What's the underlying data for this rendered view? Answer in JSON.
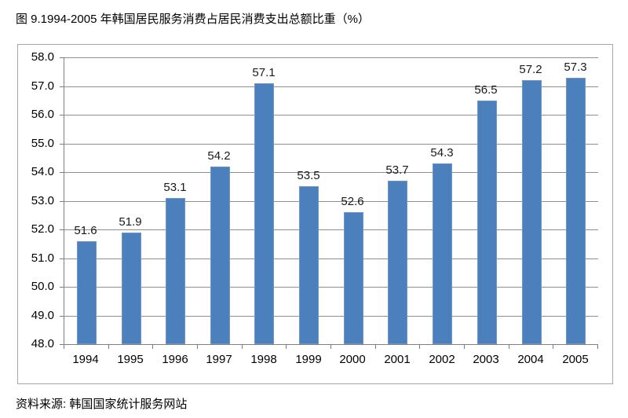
{
  "page": {
    "title": "图 9.1994-2005 年韩国居民服务消费占居民消费支出总额比重（%）",
    "source": "资料来源: 韩国国家统计服务网站"
  },
  "chart_data": {
    "type": "bar",
    "title": "图 9.1994-2005 年韩国居民服务消费占居民消费支出总额比重（%）",
    "categories": [
      "1994",
      "1995",
      "1996",
      "1997",
      "1998",
      "1999",
      "2000",
      "2001",
      "2002",
      "2003",
      "2004",
      "2005"
    ],
    "values": [
      51.6,
      51.9,
      53.1,
      54.2,
      57.1,
      53.5,
      52.6,
      53.7,
      54.3,
      56.5,
      57.2,
      57.3
    ],
    "data_labels": [
      "51.6",
      "51.9",
      "53.1",
      "54.2",
      "57.1",
      "53.5",
      "52.6",
      "53.7",
      "54.3",
      "56.5",
      "57.2",
      "57.3"
    ],
    "xlabel": "",
    "ylabel": "",
    "ylim": [
      48.0,
      58.0
    ],
    "ytick_step": 1.0,
    "ytick_labels": [
      "48.0",
      "49.0",
      "50.0",
      "51.0",
      "52.0",
      "53.0",
      "54.0",
      "55.0",
      "56.0",
      "57.0",
      "58.0"
    ],
    "grid": true,
    "legend_position": "none",
    "bar_color": "#4c80bc",
    "bar_border_color": "#6e97c8",
    "gridline_color": "#909090",
    "axis_color": "#808080",
    "frame_border_color": "#a6a6a6",
    "text_color": "#000000"
  }
}
